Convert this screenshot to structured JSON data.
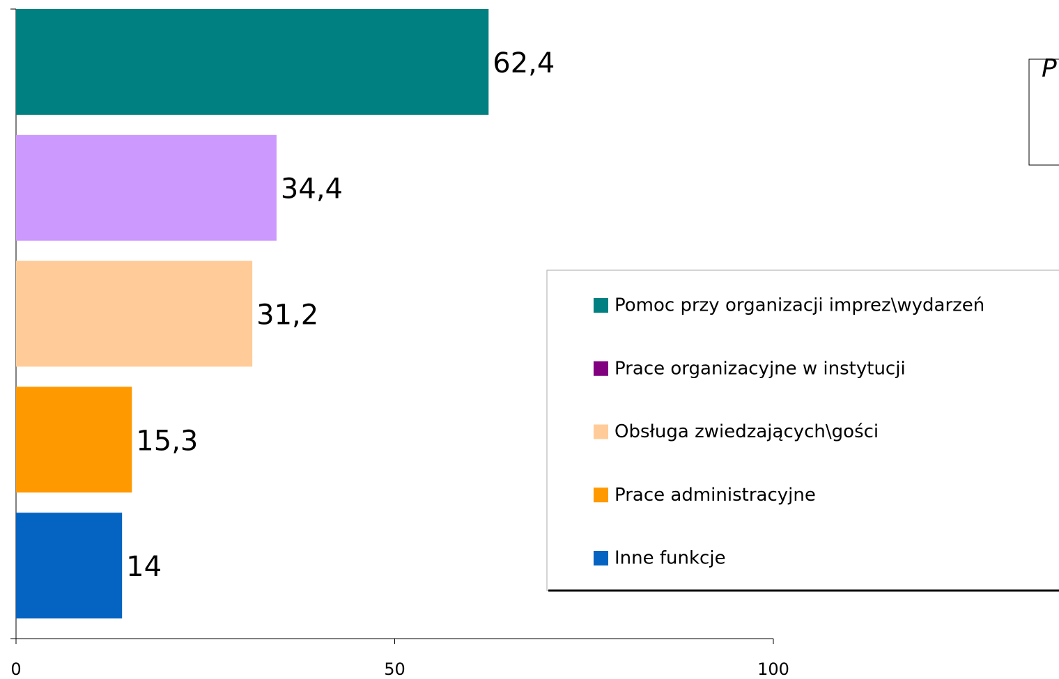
{
  "chart_data": {
    "type": "bar",
    "orientation": "horizontal",
    "title": "P",
    "categories": [
      "Pomoc przy organizacji imprez\\wydarzeń",
      "Prace organizacyjne w instytucji",
      "Obsługa zwiedzających\\gości",
      "Prace administracyjne",
      "Inne funkcje"
    ],
    "values": [
      62.4,
      34.4,
      31.2,
      15.3,
      14
    ],
    "value_labels": [
      "62,4",
      "34,4",
      "31,2",
      "15,3",
      "14"
    ],
    "colors": [
      "#008080",
      "#cc99ff",
      "#ffcc99",
      "#ff9900",
      "#0563c1"
    ],
    "legend_colors": [
      "#008080",
      "#800080",
      "#ffcc99",
      "#ff9900",
      "#0563c1"
    ],
    "xlim": [
      0,
      100
    ],
    "xticks": [
      0,
      50,
      100
    ],
    "grid": false
  }
}
